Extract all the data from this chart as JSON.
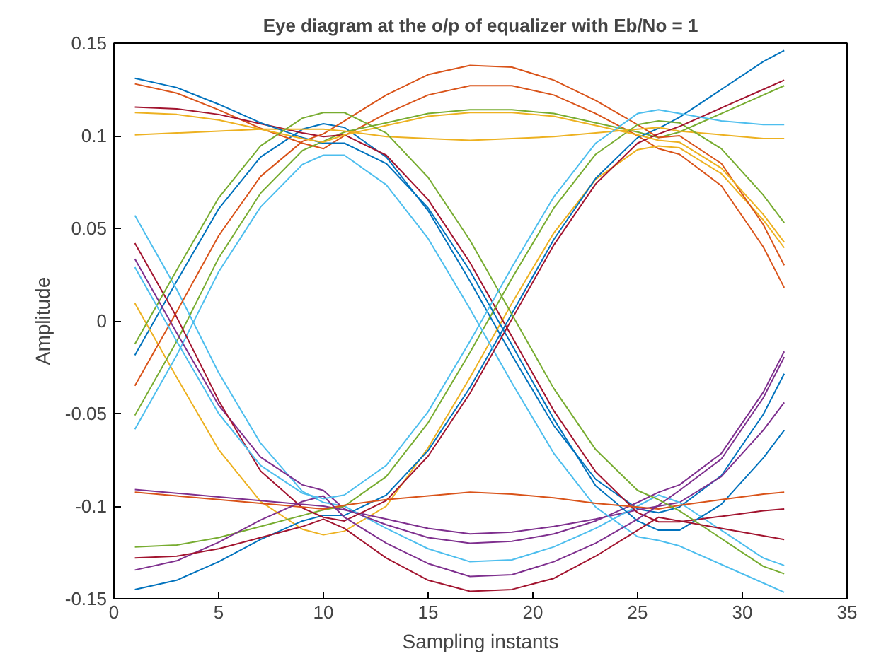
{
  "chart_data": {
    "type": "line",
    "title": "Eye diagram at the o/p of equalizer with Eb/No = 1",
    "xlabel": "Sampling instants",
    "ylabel": "Amplitude",
    "x": [
      1,
      3,
      5,
      7,
      9,
      10,
      11,
      13,
      15,
      17,
      19,
      21,
      23,
      25,
      26,
      27,
      29,
      31,
      32
    ],
    "xlim": [
      0,
      35
    ],
    "xticks": [
      0,
      5,
      10,
      15,
      20,
      25,
      30,
      35
    ],
    "ylim": [
      -0.15,
      0.15
    ],
    "yticks": [
      -0.15,
      -0.1,
      -0.05,
      0,
      0.05,
      0.1,
      0.15
    ],
    "grid": false,
    "line_style": "solid",
    "marker": "none",
    "series": [
      {
        "color": "#0072bd",
        "values": [
          -0.0185,
          0.0215,
          0.0605,
          0.0885,
          0.1035,
          0.1065,
          0.1045,
          0.0885,
          0.0595,
          0.0215,
          -0.0185,
          -0.0565,
          -0.0855,
          -0.1015,
          -0.1035,
          -0.1005,
          -0.0835,
          -0.0505,
          -0.0285
        ]
      },
      {
        "color": "#d95319",
        "values": [
          0.128,
          0.123,
          0.114,
          0.104,
          0.096,
          0.093,
          0.1,
          0.112,
          0.122,
          0.127,
          0.127,
          0.122,
          0.112,
          0.1,
          0.093,
          0.09,
          0.073,
          0.04,
          0.018
        ]
      },
      {
        "color": "#edb120",
        "values": [
          0.0095,
          -0.0305,
          -0.0695,
          -0.0975,
          -0.1125,
          -0.1155,
          -0.1135,
          -0.1,
          -0.0685,
          -0.0305,
          0.0095,
          0.0475,
          0.0765,
          0.0925,
          0.0945,
          0.0935,
          0.0795,
          0.0545,
          0.0395
        ]
      },
      {
        "color": "#7e2f8e",
        "values": [
          -0.091,
          -0.093,
          -0.095,
          -0.097,
          -0.099,
          -0.1,
          -0.102,
          -0.107,
          -0.112,
          -0.115,
          -0.114,
          -0.111,
          -0.107,
          -0.102,
          -0.1,
          -0.098,
          -0.084,
          -0.059,
          -0.044
        ]
      },
      {
        "color": "#77ac30",
        "values": [
          -0.051,
          -0.011,
          0.034,
          0.069,
          0.092,
          0.097,
          0.102,
          0.107,
          0.112,
          0.114,
          0.114,
          0.112,
          0.107,
          0.102,
          0.099,
          0.102,
          0.112,
          0.122,
          0.127
        ]
      },
      {
        "color": "#4dbeee",
        "values": [
          0.057,
          0.017,
          -0.028,
          -0.066,
          -0.092,
          -0.098,
          -0.1,
          -0.112,
          -0.123,
          -0.13,
          -0.129,
          -0.122,
          -0.112,
          -0.1,
          -0.094,
          -0.098,
          -0.113,
          -0.128,
          -0.132
        ]
      },
      {
        "color": "#a2142f",
        "values": [
          0.1155,
          0.1145,
          0.1115,
          0.1065,
          0.1015,
          0.0995,
          0.1005,
          0.0895,
          0.0655,
          0.0315,
          -0.0085,
          -0.0485,
          -0.0815,
          -0.1035,
          -0.1085,
          -0.1085,
          -0.1055,
          -0.1025,
          -0.1015
        ]
      },
      {
        "color": "#0072bd",
        "values": [
          -0.145,
          -0.14,
          -0.13,
          -0.118,
          -0.108,
          -0.105,
          -0.105,
          -0.094,
          -0.07,
          -0.036,
          0.004,
          0.044,
          0.077,
          0.099,
          0.104,
          0.11,
          0.125,
          0.14,
          0.146
        ]
      },
      {
        "color": "#d95319",
        "values": [
          -0.035,
          0.005,
          0.046,
          0.078,
          0.097,
          0.101,
          0.108,
          0.122,
          0.133,
          0.138,
          0.137,
          0.13,
          0.119,
          0.106,
          0.099,
          0.1,
          0.085,
          0.052,
          0.03
        ]
      },
      {
        "color": "#edb120",
        "values": [
          0.1005,
          0.1015,
          0.1025,
          0.1035,
          0.1035,
          0.1035,
          0.1025,
          0.0995,
          0.0985,
          0.0975,
          0.0985,
          0.0995,
          0.1015,
          0.1035,
          0.1045,
          0.1025,
          0.1005,
          0.0985,
          0.0985
        ]
      },
      {
        "color": "#7e2f8e",
        "values": [
          0.0335,
          -0.0065,
          -0.0455,
          -0.0735,
          -0.0885,
          -0.0915,
          -0.1015,
          -0.11,
          -0.117,
          -0.12,
          -0.119,
          -0.115,
          -0.108,
          -0.098,
          -0.0925,
          -0.0885,
          -0.0715,
          -0.0385,
          -0.0165
        ]
      },
      {
        "color": "#77ac30",
        "values": [
          -0.122,
          -0.121,
          -0.117,
          -0.111,
          -0.105,
          -0.102,
          -0.1,
          -0.084,
          -0.055,
          -0.017,
          0.023,
          0.061,
          0.09,
          0.106,
          0.108,
          0.107,
          0.093,
          0.068,
          0.053
        ]
      },
      {
        "color": "#4dbeee",
        "values": [
          -0.0585,
          -0.0185,
          0.0265,
          0.0615,
          0.0845,
          0.0895,
          0.0895,
          0.0735,
          0.0445,
          0.0065,
          -0.0335,
          -0.0715,
          -0.1005,
          -0.1165,
          -0.1185,
          -0.1215,
          -0.1315,
          -0.1415,
          -0.1465
        ]
      },
      {
        "color": "#a2142f",
        "values": [
          0.042,
          0.002,
          -0.043,
          -0.081,
          -0.101,
          -0.106,
          -0.108,
          -0.097,
          -0.073,
          -0.039,
          0.001,
          0.041,
          0.074,
          0.096,
          0.101,
          0.105,
          0.115,
          0.125,
          0.13
        ]
      },
      {
        "color": "#0072bd",
        "values": [
          0.131,
          0.126,
          0.117,
          0.107,
          0.099,
          0.096,
          0.096,
          0.085,
          0.061,
          0.027,
          -0.013,
          -0.053,
          -0.089,
          -0.108,
          -0.113,
          -0.113,
          -0.099,
          -0.074,
          -0.059
        ]
      },
      {
        "color": "#d95319",
        "values": [
          -0.0925,
          -0.0945,
          -0.0965,
          -0.0985,
          -0.1005,
          -0.1015,
          -0.0995,
          -0.0965,
          -0.0945,
          -0.0925,
          -0.0935,
          -0.0955,
          -0.0985,
          -0.1005,
          -0.1015,
          -0.0995,
          -0.0965,
          -0.0935,
          -0.0925
        ]
      },
      {
        "color": "#edb120",
        "values": [
          0.1125,
          0.1115,
          0.1085,
          0.1035,
          0.0985,
          0.0965,
          0.1005,
          0.1055,
          0.1105,
          0.1125,
          0.1125,
          0.1105,
          0.1055,
          0.1005,
          0.0975,
          0.0965,
          0.0825,
          0.0575,
          0.0425
        ]
      },
      {
        "color": "#7e2f8e",
        "values": [
          -0.1345,
          -0.1295,
          -0.1195,
          -0.1075,
          -0.0975,
          -0.0945,
          -0.106,
          -0.12,
          -0.131,
          -0.138,
          -0.137,
          -0.13,
          -0.12,
          -0.107,
          -0.0995,
          -0.0915,
          -0.0745,
          -0.0415,
          -0.0195
        ]
      },
      {
        "color": "#77ac30",
        "values": [
          -0.0125,
          0.0275,
          0.0665,
          0.0945,
          0.1095,
          0.1125,
          0.1125,
          0.1015,
          0.0775,
          0.0435,
          0.0035,
          -0.0365,
          -0.0695,
          -0.0915,
          -0.0965,
          -0.1025,
          -0.1175,
          -0.1325,
          -0.1365
        ]
      },
      {
        "color": "#4dbeee",
        "values": [
          0.029,
          -0.011,
          -0.05,
          -0.078,
          -0.093,
          -0.096,
          -0.094,
          -0.078,
          -0.049,
          -0.011,
          0.029,
          0.067,
          0.096,
          0.112,
          0.114,
          0.112,
          0.108,
          0.106,
          0.106
        ]
      },
      {
        "color": "#a2142f",
        "values": [
          -0.128,
          -0.127,
          -0.123,
          -0.117,
          -0.111,
          -0.107,
          -0.112,
          -0.128,
          -0.14,
          -0.146,
          -0.145,
          -0.139,
          -0.127,
          -0.113,
          -0.106,
          -0.108,
          -0.112,
          -0.116,
          -0.118
        ]
      }
    ]
  }
}
